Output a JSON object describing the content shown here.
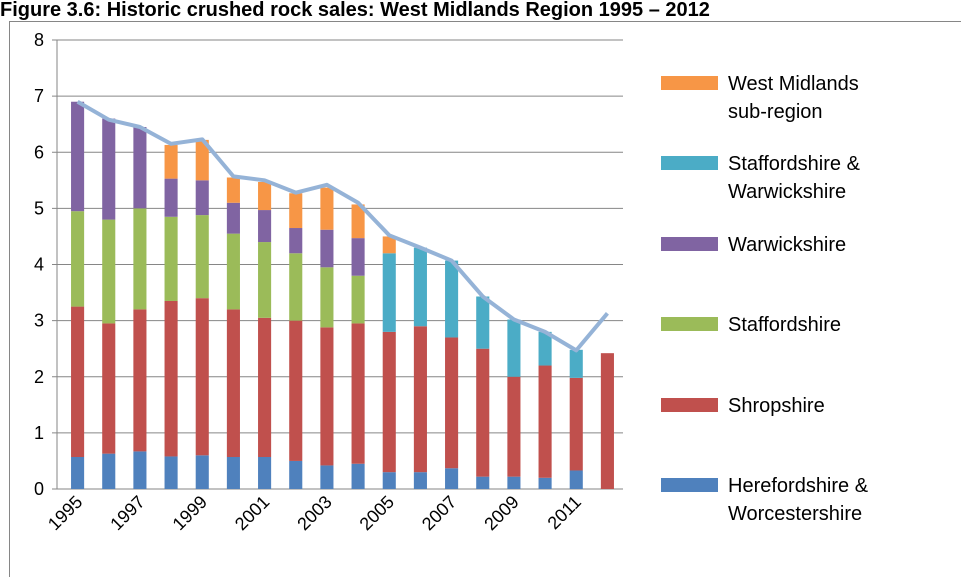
{
  "chart_data": {
    "type": "bar",
    "stacked": true,
    "title": "Figure 3.6: Historic crushed rock sales: West Midlands Region 1995 – 2012",
    "categories": [
      "1995",
      null,
      "1997",
      null,
      "1999",
      null,
      "2001",
      null,
      "2003",
      null,
      "2005",
      null,
      "2007",
      null,
      "2009",
      null,
      "2011",
      null
    ],
    "series": [
      {
        "name": "Herefordshire & Worcestershire",
        "color": "#4f81bd",
        "values": [
          0.57,
          0.63,
          0.67,
          0.58,
          0.6,
          0.57,
          0.57,
          0.5,
          0.42,
          0.45,
          0.3,
          0.3,
          0.37,
          0.22,
          0.22,
          0.2,
          0.33,
          null
        ]
      },
      {
        "name": "Shropshire",
        "color": "#c0504d",
        "values": [
          2.68,
          2.32,
          2.53,
          2.77,
          2.8,
          2.63,
          2.48,
          2.5,
          2.46,
          2.5,
          2.5,
          2.6,
          2.33,
          2.28,
          1.78,
          2.0,
          1.65,
          2.42
        ]
      },
      {
        "name": "Staffordshire",
        "color": "#9bbb59",
        "values": [
          1.7,
          1.85,
          1.8,
          1.5,
          1.48,
          1.35,
          1.35,
          1.2,
          1.07,
          0.85,
          null,
          null,
          null,
          null,
          null,
          null,
          null,
          null
        ]
      },
      {
        "name": "Warwickshire",
        "color": "#8064a2",
        "values": [
          1.95,
          1.8,
          1.45,
          0.68,
          0.62,
          0.55,
          0.57,
          0.45,
          0.67,
          0.67,
          null,
          null,
          null,
          null,
          null,
          null,
          null,
          null
        ]
      },
      {
        "name": "Staffordshire & Warwickshire",
        "color": "#4bacc6",
        "values": [
          null,
          null,
          null,
          null,
          null,
          null,
          null,
          null,
          null,
          null,
          1.4,
          1.4,
          1.37,
          0.93,
          1.02,
          0.6,
          0.5,
          null
        ]
      },
      {
        "name": "West Midlands sub-region",
        "color": "#f79646",
        "values": [
          null,
          null,
          null,
          0.6,
          0.72,
          0.45,
          0.5,
          0.62,
          0.75,
          0.6,
          0.3,
          null,
          null,
          null,
          null,
          null,
          null,
          null
        ]
      }
    ],
    "line": {
      "color": "#95b3d7",
      "values": [
        6.9,
        6.58,
        6.45,
        6.15,
        6.23,
        5.57,
        5.5,
        5.28,
        5.42,
        5.1,
        4.52,
        4.3,
        4.07,
        3.43,
        3.02,
        2.8,
        2.47,
        3.13
      ]
    },
    "ylim": [
      0,
      8
    ],
    "yticks": [
      0,
      1,
      2,
      3,
      4,
      5,
      6,
      7,
      8
    ],
    "grid": true,
    "legend": "right"
  }
}
